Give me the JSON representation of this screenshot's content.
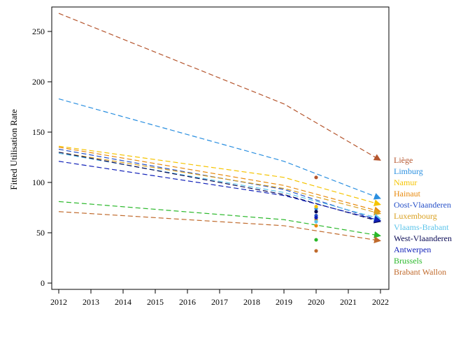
{
  "chart_data": {
    "type": "line",
    "title": "",
    "xlabel": "",
    "ylabel": "Fitted Utilisation Rate",
    "xlim": [
      2012,
      2022
    ],
    "ylim": [
      0,
      275
    ],
    "x_ticks": [
      2012,
      2013,
      2014,
      2015,
      2016,
      2017,
      2018,
      2019,
      2020,
      2021,
      2022
    ],
    "y_ticks": [
      0,
      50,
      100,
      150,
      200,
      250
    ],
    "grid": false,
    "legend_placement": "right",
    "series": [
      {
        "name": "Liège",
        "color": "#b5562e",
        "line": [
          [
            2012,
            268
          ],
          [
            2019,
            178
          ],
          [
            2022,
            122
          ]
        ],
        "point_2020": 105
      },
      {
        "name": "Limburg",
        "color": "#2a8fe0",
        "line": [
          [
            2012,
            183
          ],
          [
            2019,
            121
          ],
          [
            2022,
            84
          ]
        ],
        "point_2020": 74
      },
      {
        "name": "Namur",
        "color": "#f5c400",
        "line": [
          [
            2012,
            136
          ],
          [
            2019,
            105
          ],
          [
            2022,
            78
          ]
        ],
        "point_2020": 76
      },
      {
        "name": "Hainaut",
        "color": "#e8890c",
        "line": [
          [
            2012,
            135
          ],
          [
            2019,
            97
          ],
          [
            2022,
            71
          ]
        ],
        "point_2020": 57
      },
      {
        "name": "Oost-Vlaanderen",
        "color": "#2650c8",
        "line": [
          [
            2012,
            133
          ],
          [
            2019,
            93
          ],
          [
            2022,
            62
          ]
        ],
        "point_2020": 67
      },
      {
        "name": "Luxembourg",
        "color": "#d9a020",
        "line": [
          [
            2012,
            130
          ],
          [
            2019,
            94
          ],
          [
            2022,
            69
          ]
        ],
        "point_2020": 63
      },
      {
        "name": "Vlaams-Brabant",
        "color": "#5cc4ea",
        "line": [
          [
            2012,
            129
          ],
          [
            2019,
            90
          ],
          [
            2022,
            64
          ]
        ],
        "point_2020": 61
      },
      {
        "name": "West-Vlaanderen",
        "color": "#0a0a55",
        "line": [
          [
            2012,
            130
          ],
          [
            2019,
            88
          ],
          [
            2022,
            61
          ]
        ],
        "point_2020": 71
      },
      {
        "name": "Antwerpen",
        "color": "#1020b8",
        "line": [
          [
            2012,
            121
          ],
          [
            2019,
            87
          ],
          [
            2022,
            62
          ]
        ],
        "point_2020": 65
      },
      {
        "name": "Brussels",
        "color": "#2ab82a",
        "line": [
          [
            2012,
            81
          ],
          [
            2019,
            63
          ],
          [
            2022,
            47
          ]
        ],
        "point_2020": 43
      },
      {
        "name": "Brabant Wallon",
        "color": "#c06a2c",
        "line": [
          [
            2012,
            71
          ],
          [
            2019,
            57
          ],
          [
            2022,
            42
          ]
        ],
        "point_2020": 32
      }
    ]
  }
}
